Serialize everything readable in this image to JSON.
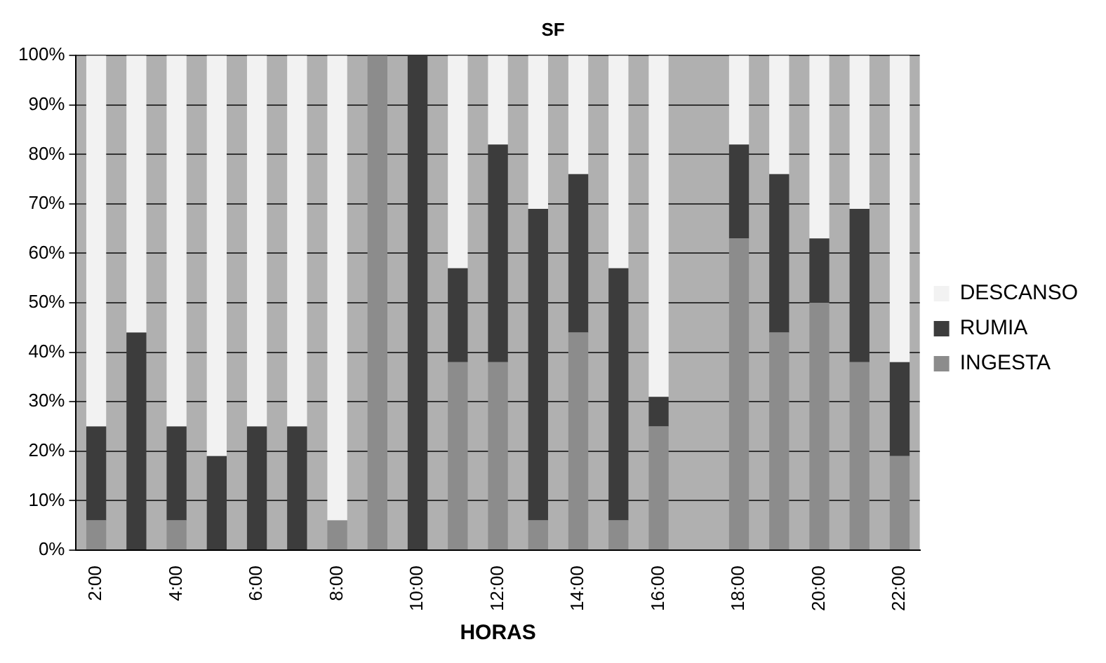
{
  "chart_data": {
    "type": "bar",
    "title": "SF",
    "xlabel": "HORAS",
    "stacked": true,
    "categories": [
      "2:00",
      null,
      "4:00",
      null,
      "6:00",
      null,
      "8:00",
      null,
      "10:00",
      null,
      "12:00",
      null,
      "14:00",
      null,
      "16:00",
      null,
      "18:00",
      null,
      "20:00",
      null,
      "22:00"
    ],
    "series": [
      {
        "name": "INGESTA",
        "color": "#8c8c8c",
        "values": [
          6,
          0,
          6,
          0,
          0,
          0,
          6,
          100,
          0,
          38,
          38,
          6,
          44,
          6,
          25,
          null,
          63,
          44,
          50,
          38,
          19
        ]
      },
      {
        "name": "RUMIA",
        "color": "#3c3c3c",
        "values": [
          19,
          44,
          19,
          19,
          25,
          25,
          0,
          0,
          100,
          19,
          44,
          63,
          32,
          51,
          6,
          null,
          19,
          32,
          13,
          31,
          19
        ]
      },
      {
        "name": "DESCANSO",
        "color": "#f2f2f2",
        "values": [
          75,
          56,
          75,
          81,
          75,
          75,
          94,
          0,
          0,
          43,
          18,
          31,
          24,
          43,
          69,
          null,
          18,
          24,
          37,
          31,
          62
        ]
      }
    ],
    "ylim": [
      0,
      100
    ],
    "yticks": [
      {
        "value": 0,
        "label": "0%"
      },
      {
        "value": 10,
        "label": "10%"
      },
      {
        "value": 20,
        "label": "20%"
      },
      {
        "value": 30,
        "label": "30%"
      },
      {
        "value": 40,
        "label": "40%"
      },
      {
        "value": 50,
        "label": "50%"
      },
      {
        "value": 60,
        "label": "60%"
      },
      {
        "value": 70,
        "label": "70%"
      },
      {
        "value": 80,
        "label": "80%"
      },
      {
        "value": 90,
        "label": "90%"
      },
      {
        "value": 100,
        "label": "100%"
      }
    ],
    "grid": "y",
    "legend": "right"
  }
}
